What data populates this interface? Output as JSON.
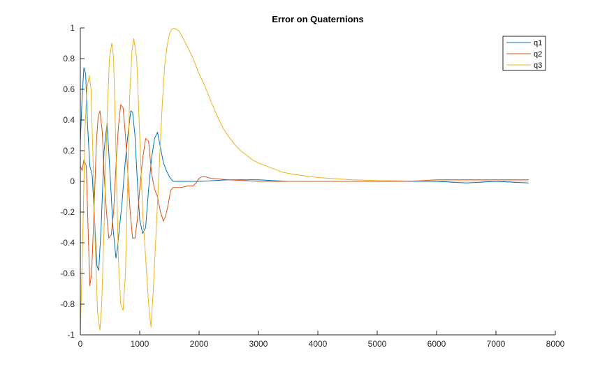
{
  "chart_data": {
    "type": "line",
    "title": "Error on Quaternions",
    "xlabel": "",
    "ylabel": "",
    "xlim": [
      0,
      8000
    ],
    "ylim": [
      -1,
      1
    ],
    "xticks": [
      0,
      1000,
      2000,
      3000,
      4000,
      5000,
      6000,
      7000,
      8000
    ],
    "xtick_labels": [
      "0",
      "1000",
      "2000",
      "3000",
      "4000",
      "5000",
      "6000",
      "7000",
      "8000"
    ],
    "yticks": [
      -1,
      -0.8,
      -0.6,
      -0.4,
      -0.2,
      0,
      0.2,
      0.4,
      0.6,
      0.8,
      1
    ],
    "ytick_labels": [
      "-1",
      "-0.8",
      "-0.6",
      "-0.4",
      "-0.2",
      "0",
      "0.2",
      "0.4",
      "0.6",
      "0.8",
      "1"
    ],
    "grid": false,
    "legend_position": "top-right",
    "series": [
      {
        "name": "q1",
        "color": "#0072BD",
        "x": [
          0,
          30,
          60,
          90,
          120,
          160,
          200,
          240,
          280,
          310,
          350,
          400,
          450,
          500,
          550,
          600,
          620,
          660,
          700,
          750,
          800,
          850,
          880,
          920,
          960,
          1000,
          1050,
          1100,
          1150,
          1200,
          1250,
          1300,
          1350,
          1400,
          1450,
          1500,
          1560,
          1600,
          2000,
          2500,
          3000,
          3500,
          4000,
          4500,
          5000,
          5500,
          6000,
          6500,
          7000,
          7550
        ],
        "y": [
          0.25,
          0.55,
          0.74,
          0.7,
          0.38,
          0.1,
          0.04,
          -0.25,
          -0.55,
          -0.58,
          -0.3,
          0.2,
          0.38,
          0.05,
          -0.3,
          -0.5,
          -0.45,
          -0.3,
          -0.15,
          0.1,
          0.3,
          0.46,
          0.45,
          0.3,
          0.0,
          -0.25,
          -0.34,
          -0.3,
          -0.05,
          0.15,
          0.28,
          0.32,
          0.22,
          0.12,
          0.07,
          0.03,
          0.0,
          0.0,
          0.0,
          0.01,
          0.01,
          0.0,
          0.0,
          0.0,
          0.0,
          0.0,
          0.0,
          -0.01,
          0.0,
          -0.01
        ]
      },
      {
        "name": "q2",
        "color": "#D95319",
        "x": [
          0,
          30,
          60,
          100,
          130,
          160,
          190,
          230,
          270,
          300,
          330,
          370,
          400,
          440,
          480,
          520,
          560,
          600,
          640,
          680,
          720,
          760,
          800,
          840,
          880,
          920,
          960,
          1000,
          1050,
          1100,
          1150,
          1200,
          1250,
          1300,
          1350,
          1400,
          1440,
          1480,
          1520,
          1560,
          1600,
          1700,
          1800,
          1900,
          1950,
          2000,
          2050,
          2100,
          2200,
          2500,
          3000,
          3500,
          4000,
          4500,
          5000,
          5500,
          6000,
          6500,
          7000,
          7550
        ],
        "y": [
          0.1,
          0.07,
          0.14,
          0.1,
          -0.3,
          -0.68,
          -0.6,
          -0.2,
          0.25,
          0.42,
          0.46,
          0.32,
          0.05,
          -0.2,
          -0.37,
          -0.35,
          -0.2,
          0.1,
          0.35,
          0.5,
          0.48,
          0.3,
          0.05,
          -0.2,
          -0.37,
          -0.37,
          -0.25,
          -0.05,
          0.15,
          0.28,
          0.26,
          0.05,
          -0.05,
          -0.1,
          -0.2,
          -0.26,
          -0.22,
          -0.15,
          -0.06,
          -0.04,
          -0.04,
          -0.04,
          -0.03,
          -0.03,
          -0.01,
          0.02,
          0.03,
          0.03,
          0.02,
          0.01,
          0.0,
          0.0,
          0.0,
          0.0,
          0.0,
          0.0,
          0.01,
          0.01,
          0.01,
          0.01
        ]
      },
      {
        "name": "q3",
        "color": "#EDB120",
        "x": [
          0,
          20,
          50,
          80,
          110,
          150,
          180,
          210,
          250,
          290,
          330,
          360,
          400,
          450,
          490,
          530,
          560,
          600,
          640,
          680,
          720,
          760,
          800,
          830,
          870,
          900,
          950,
          1000,
          1050,
          1100,
          1150,
          1190,
          1230,
          1280,
          1330,
          1380,
          1420,
          1460,
          1500,
          1540,
          1580,
          1620,
          1660,
          1720,
          1800,
          1900,
          2000,
          2100,
          2200,
          2300,
          2400,
          2500,
          2600,
          2700,
          2800,
          2900,
          3000,
          3200,
          3400,
          3600,
          3800,
          4000,
          4200,
          4400,
          4600,
          4800,
          5000,
          5500,
          6000,
          6500,
          7000,
          7550
        ],
        "y": [
          -1.0,
          -0.7,
          -0.2,
          0.35,
          0.6,
          0.69,
          0.6,
          0.2,
          -0.4,
          -0.85,
          -0.97,
          -0.8,
          -0.3,
          0.4,
          0.8,
          0.9,
          0.8,
          0.2,
          -0.5,
          -0.8,
          -0.84,
          -0.6,
          0.05,
          0.55,
          0.85,
          0.93,
          0.8,
          0.3,
          -0.2,
          -0.5,
          -0.8,
          -0.95,
          -0.7,
          -0.3,
          0.1,
          0.5,
          0.75,
          0.88,
          0.96,
          0.99,
          1.0,
          0.99,
          0.98,
          0.94,
          0.88,
          0.8,
          0.7,
          0.62,
          0.52,
          0.43,
          0.35,
          0.29,
          0.24,
          0.2,
          0.17,
          0.14,
          0.12,
          0.09,
          0.06,
          0.045,
          0.035,
          0.025,
          0.02,
          0.015,
          0.01,
          0.008,
          0.005,
          0.003,
          0.003,
          0.003,
          0.003,
          0.003
        ]
      }
    ]
  }
}
